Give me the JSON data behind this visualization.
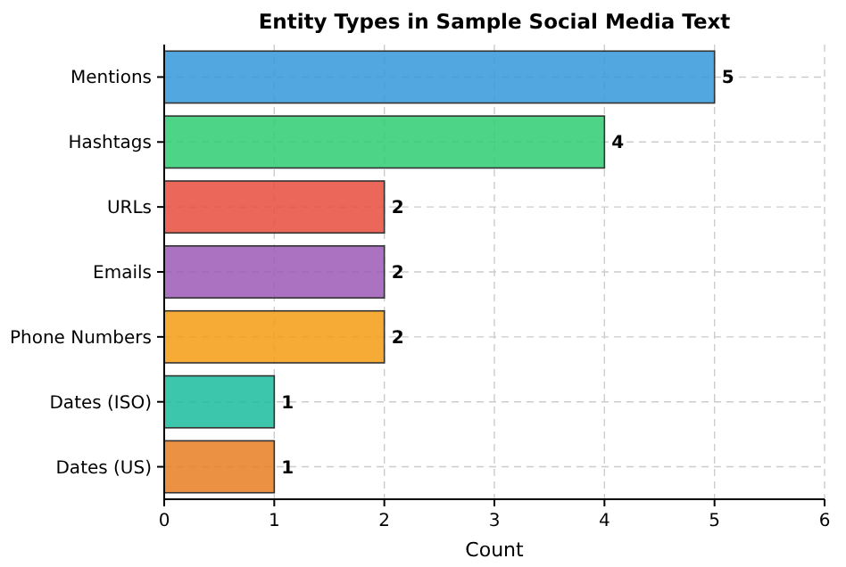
{
  "chart_data": {
    "type": "bar",
    "orientation": "horizontal",
    "title": "Entity Types in Sample Social Media Text",
    "xlabel": "Count",
    "categories": [
      "Mentions",
      "Hashtags",
      "URLs",
      "Emails",
      "Phone Numbers",
      "Dates (ISO)",
      "Dates (US)"
    ],
    "values": [
      5,
      4,
      2,
      2,
      2,
      1,
      1
    ],
    "colors": [
      "#3498db",
      "#2ecc71",
      "#e74c3c",
      "#9b59b6",
      "#f39c12",
      "#1abc9c",
      "#e67e22"
    ],
    "xlim": [
      0,
      6
    ],
    "xticks": [
      0,
      1,
      2,
      3,
      4,
      5,
      6
    ],
    "grid": true,
    "data_labels": true
  }
}
